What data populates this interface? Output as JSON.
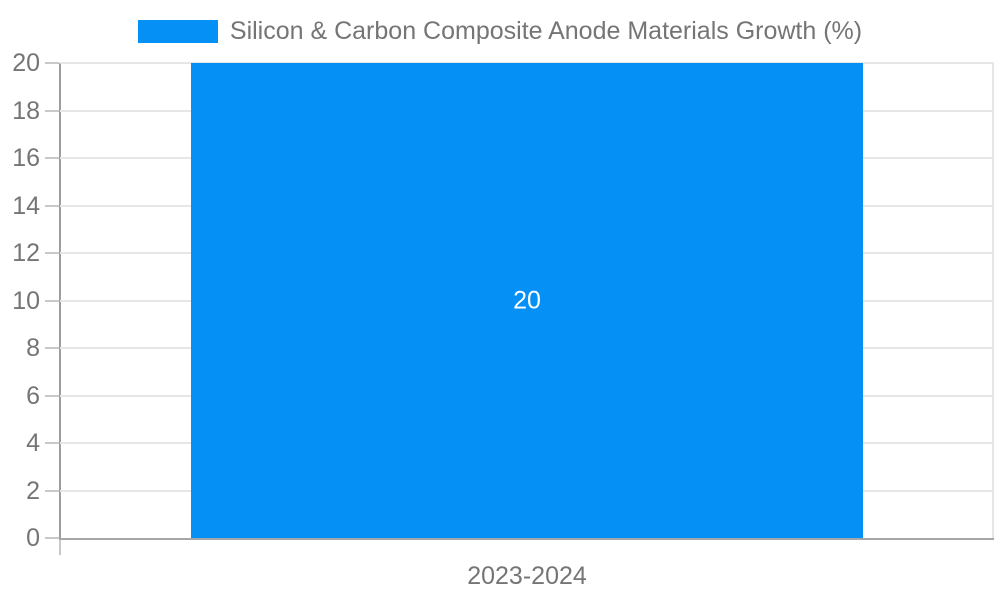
{
  "chart_data": {
    "type": "bar",
    "title": "Silicon & Carbon Composite Anode Materials Growth (%)",
    "legend": {
      "position": "top",
      "entries": [
        {
          "label": "Silicon & Carbon Composite Anode Materials Growth (%)",
          "color": "#0590f5"
        }
      ]
    },
    "categories": [
      "2023-2024"
    ],
    "series": [
      {
        "name": "Silicon & Carbon Composite Anode Materials Growth (%)",
        "values": [
          20
        ]
      }
    ],
    "bar_value_labels": [
      "20"
    ],
    "xlabel": "",
    "ylabel": "",
    "ylim": [
      0,
      20
    ],
    "yticks": [
      0,
      2,
      4,
      6,
      8,
      10,
      12,
      14,
      16,
      18,
      20
    ],
    "grid": true,
    "legend_position": "top",
    "colors": {
      "bar": "#0590f5",
      "text": "#757575",
      "grid": "#e6e6e6",
      "axis": "#9e9e9e",
      "baseline": "#a6a6a6",
      "tick": "#c9c9c9",
      "bar_label": "#ffffff",
      "background": "#ffffff"
    }
  }
}
